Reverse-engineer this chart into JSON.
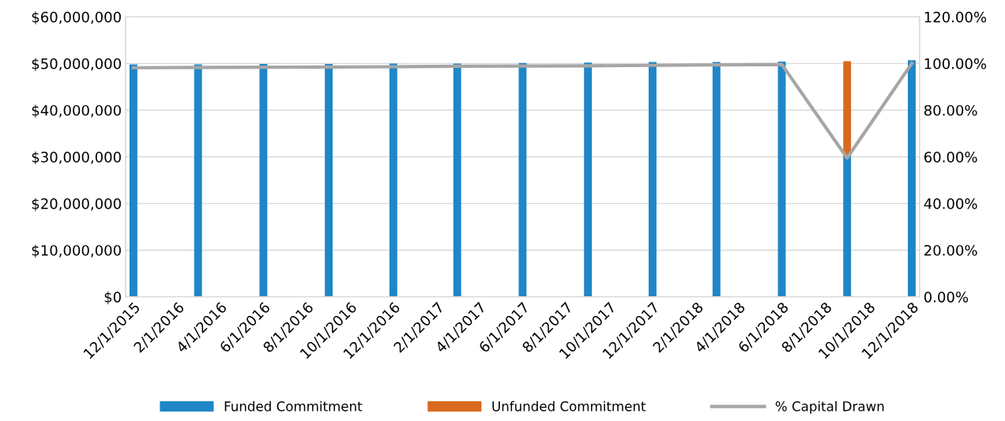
{
  "chart_data": {
    "type": "bar",
    "stacked": true,
    "x": [
      "2015-12-01",
      "2016-03-01",
      "2016-06-01",
      "2016-09-01",
      "2016-12-01",
      "2017-03-01",
      "2017-06-01",
      "2017-09-01",
      "2017-12-01",
      "2018-03-01",
      "2018-06-01",
      "2018-09-01",
      "2018-12-01"
    ],
    "series": [
      {
        "name": "Funded Commitment",
        "color": "#1f86c8",
        "values": [
          49800000,
          49800000,
          49900000,
          49900000,
          50000000,
          50000000,
          50100000,
          50200000,
          50300000,
          50300000,
          50400000,
          30200000,
          50700000
        ]
      },
      {
        "name": "Unfunded Commitment",
        "color": "#d9691f",
        "values": [
          null,
          null,
          null,
          null,
          null,
          null,
          null,
          null,
          null,
          null,
          null,
          20300000,
          null
        ]
      },
      {
        "name": "% Capital Drawn",
        "type": "line",
        "axis": "y2",
        "color": "#a6a6a6",
        "values": [
          98.2,
          98.3,
          98.4,
          98.5,
          98.6,
          98.8,
          98.9,
          99.0,
          99.2,
          99.4,
          99.6,
          59.5,
          100
        ]
      }
    ],
    "ylim": [
      0,
      60000000
    ],
    "yticks": [
      {
        "value": 0,
        "label": "$0"
      },
      {
        "value": 10000000,
        "label": "$10,000,000"
      },
      {
        "value": 20000000,
        "label": "$20,000,000"
      },
      {
        "value": 30000000,
        "label": "$30,000,000"
      },
      {
        "value": 40000000,
        "label": "$40,000,000"
      },
      {
        "value": 50000000,
        "label": "$50,000,000"
      },
      {
        "value": 60000000,
        "label": "$60,000,000"
      }
    ],
    "y2lim": [
      0,
      120
    ],
    "y2ticks": [
      {
        "value": 0,
        "label": "0.00%"
      },
      {
        "value": 20,
        "label": "20.00%"
      },
      {
        "value": 40,
        "label": "40.00%"
      },
      {
        "value": 60,
        "label": "60.00%"
      },
      {
        "value": 80,
        "label": "80.00%"
      },
      {
        "value": 100,
        "label": "100.00%"
      },
      {
        "value": 120,
        "label": "120.00%"
      }
    ],
    "xlim": [
      "2015-11-20",
      "2018-12-12"
    ],
    "xticks": [
      {
        "value": "2015-12-01",
        "label": "12/1/2015"
      },
      {
        "value": "2016-02-01",
        "label": "2/1/2016"
      },
      {
        "value": "2016-04-01",
        "label": "4/1/2016"
      },
      {
        "value": "2016-06-01",
        "label": "6/1/2016"
      },
      {
        "value": "2016-08-01",
        "label": "8/1/2016"
      },
      {
        "value": "2016-10-01",
        "label": "10/1/2016"
      },
      {
        "value": "2016-12-01",
        "label": "12/1/2016"
      },
      {
        "value": "2017-02-01",
        "label": "2/1/2017"
      },
      {
        "value": "2017-04-01",
        "label": "4/1/2017"
      },
      {
        "value": "2017-06-01",
        "label": "6/1/2017"
      },
      {
        "value": "2017-08-01",
        "label": "8/1/2017"
      },
      {
        "value": "2017-10-01",
        "label": "10/1/2017"
      },
      {
        "value": "2017-12-01",
        "label": "12/1/2017"
      },
      {
        "value": "2018-02-01",
        "label": "2/1/2018"
      },
      {
        "value": "2018-04-01",
        "label": "4/1/2018"
      },
      {
        "value": "2018-06-01",
        "label": "6/1/2018"
      },
      {
        "value": "2018-08-01",
        "label": "8/1/2018"
      },
      {
        "value": "2018-10-01",
        "label": "10/1/2018"
      },
      {
        "value": "2018-12-01",
        "label": "12/1/2018"
      }
    ],
    "grid": "y",
    "legend": "bottom",
    "marker": "none",
    "line_style": "solid"
  }
}
